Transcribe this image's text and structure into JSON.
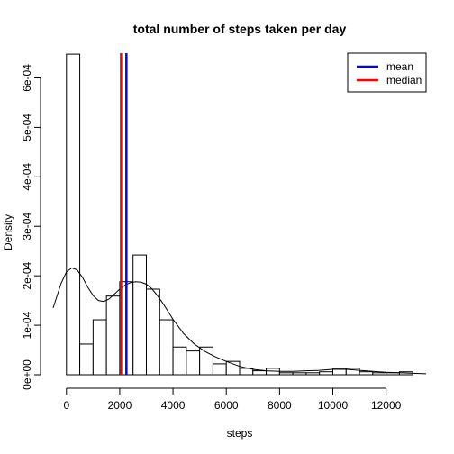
{
  "chart_data": {
    "type": "bar",
    "title": "total number of steps taken per day",
    "xlabel": "steps",
    "ylabel": "Density",
    "xlim": [
      -500,
      13500
    ],
    "ylim": [
      0,
      0.00065
    ],
    "xticks": [
      0,
      2000,
      4000,
      6000,
      8000,
      10000,
      12000
    ],
    "xtick_labels": [
      "0",
      "2000",
      "4000",
      "6000",
      "8000",
      "10000",
      "12000"
    ],
    "yticks": [
      0,
      0.0001,
      0.0002,
      0.0003,
      0.0004,
      0.0005,
      0.0006
    ],
    "ytick_labels": [
      "0e+00",
      "1e-04",
      "2e-04",
      "3e-04",
      "4e-04",
      "5e-04",
      "6e-04"
    ],
    "bin_width": 500,
    "bins": [
      {
        "start": 0,
        "end": 500,
        "density": 0.000648
      },
      {
        "start": 500,
        "end": 1000,
        "density": 6.2e-05
      },
      {
        "start": 1000,
        "end": 1500,
        "density": 0.000111
      },
      {
        "start": 1500,
        "end": 2000,
        "density": 0.000159
      },
      {
        "start": 2000,
        "end": 2500,
        "density": 0.000188
      },
      {
        "start": 2500,
        "end": 3000,
        "density": 0.000242
      },
      {
        "start": 3000,
        "end": 3500,
        "density": 0.000173
      },
      {
        "start": 3500,
        "end": 4000,
        "density": 0.000111
      },
      {
        "start": 4000,
        "end": 4500,
        "density": 5.6e-05
      },
      {
        "start": 4500,
        "end": 5000,
        "density": 4.8e-05
      },
      {
        "start": 5000,
        "end": 5500,
        "density": 5.6e-05
      },
      {
        "start": 5500,
        "end": 6000,
        "density": 2.2e-05
      },
      {
        "start": 6000,
        "end": 6500,
        "density": 2.7e-05
      },
      {
        "start": 6500,
        "end": 7000,
        "density": 1.3e-05
      },
      {
        "start": 7000,
        "end": 7500,
        "density": 8e-06
      },
      {
        "start": 7500,
        "end": 8000,
        "density": 1.3e-05
      },
      {
        "start": 8000,
        "end": 8500,
        "density": 4e-06
      },
      {
        "start": 8500,
        "end": 9000,
        "density": 4e-06
      },
      {
        "start": 9000,
        "end": 9500,
        "density": 4e-06
      },
      {
        "start": 9500,
        "end": 10000,
        "density": 6e-06
      },
      {
        "start": 10000,
        "end": 10500,
        "density": 1.3e-05
      },
      {
        "start": 10500,
        "end": 11000,
        "density": 1.3e-05
      },
      {
        "start": 11000,
        "end": 11500,
        "density": 6e-06
      },
      {
        "start": 11500,
        "end": 12000,
        "density": 4e-06
      },
      {
        "start": 12000,
        "end": 12500,
        "density": 4e-06
      },
      {
        "start": 12500,
        "end": 13000,
        "density": 6e-06
      }
    ],
    "density_curve": {
      "x": [
        -500,
        -200,
        0,
        200,
        400,
        600,
        800,
        1000,
        1200,
        1400,
        1600,
        1800,
        2000,
        2200,
        2400,
        2600,
        2800,
        3000,
        3200,
        3400,
        3600,
        3800,
        4000,
        4400,
        4800,
        5200,
        5600,
        6000,
        6500,
        7000,
        7500,
        8000,
        8500,
        9000,
        9500,
        10000,
        10500,
        11000,
        11500,
        12000,
        12500,
        13000,
        13500
      ],
      "y": [
        0.000135,
        0.000185,
        0.000208,
        0.000216,
        0.000212,
        0.000197,
        0.000177,
        0.00016,
        0.00015,
        0.000148,
        0.000153,
        0.000163,
        0.000173,
        0.000181,
        0.000186,
        0.000188,
        0.000187,
        0.000183,
        0.000174,
        0.000161,
        0.000146,
        0.000129,
        0.000112,
        8.3e-05,
        6.2e-05,
        4.7e-05,
        3.6e-05,
        2.7e-05,
        1.7e-05,
        1.1e-05,
        8e-06,
        7e-06,
        7e-06,
        8e-06,
        9e-06,
        1.1e-05,
        1.1e-05,
        9e-06,
        7e-06,
        5e-06,
        4e-06,
        3e-06,
        2e-06
      ]
    },
    "vlines": [
      {
        "name": "mean",
        "x": 2250,
        "color": "#0000ff"
      },
      {
        "name": "median",
        "x": 2050,
        "color": "#ff0000"
      }
    ],
    "legend": {
      "position": "top-right",
      "entries": [
        {
          "label": "mean",
          "color": "#0000ff"
        },
        {
          "label": "median",
          "color": "#ff0000"
        }
      ]
    },
    "grid": false
  }
}
